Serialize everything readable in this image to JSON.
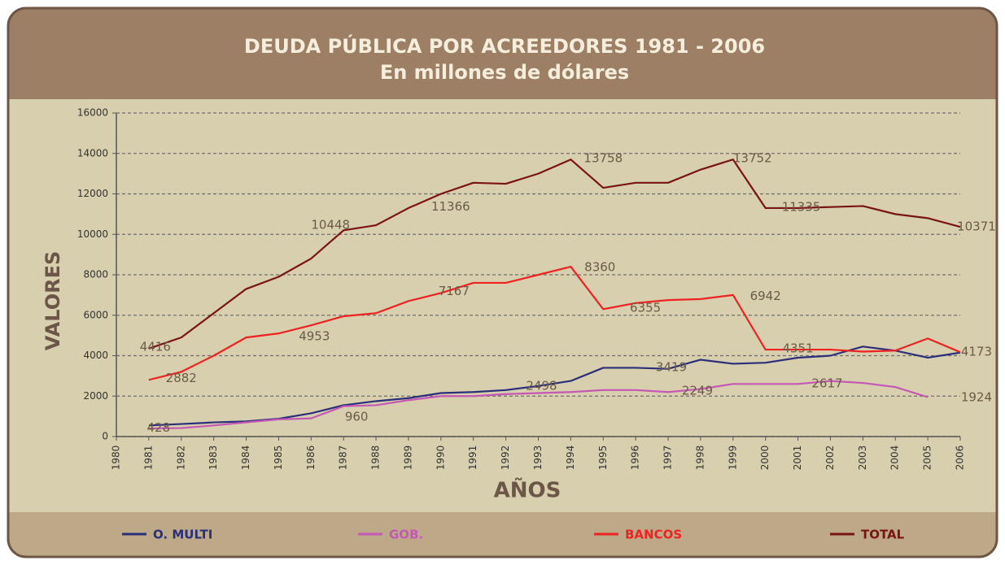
{
  "chart_data": {
    "type": "line",
    "title": "DEUDA PÚBLICA POR ACREEDORES 1981 - 2006",
    "subtitle": "En millones de dólares",
    "x_label": "AÑOS",
    "y_label": "VALORES",
    "x": [
      1981,
      1982,
      1983,
      1984,
      1985,
      1986,
      1987,
      1988,
      1989,
      1990,
      1991,
      1992,
      1993,
      1994,
      1995,
      1996,
      1997,
      1998,
      1999,
      2000,
      2001,
      2002,
      2003,
      2004,
      2005,
      2006
    ],
    "series": [
      {
        "name": "O. MULTI",
        "color": "#2b2f7a",
        "values": [
          550,
          620,
          700,
          750,
          880,
          1150,
          1550,
          1750,
          1900,
          2150,
          2200,
          2300,
          2500,
          2750,
          3400,
          3400,
          3350,
          3800,
          3600,
          3650,
          3900,
          4000,
          4450,
          4250,
          3900,
          4150
        ]
      },
      {
        "name": "GOB.",
        "color": "#c458b4",
        "values": [
          400,
          420,
          550,
          700,
          850,
          900,
          1500,
          1550,
          1800,
          2000,
          2000,
          2100,
          2150,
          2200,
          2300,
          2300,
          2200,
          2350,
          2600,
          2600,
          2600,
          2750,
          2650,
          2450,
          1950,
          null
        ]
      },
      {
        "name": "BANCOS",
        "color": "#ee2222",
        "values": [
          2800,
          3200,
          4000,
          4900,
          5100,
          5500,
          5950,
          6100,
          6700,
          7100,
          7600,
          7600,
          8000,
          8400,
          6300,
          6600,
          6750,
          6800,
          7000,
          4300,
          4300,
          4300,
          4200,
          4250,
          4850,
          4173
        ]
      },
      {
        "name": "TOTAL",
        "color": "#7a1414",
        "values": [
          4350,
          4900,
          6100,
          7300,
          7900,
          8800,
          10200,
          10450,
          11300,
          12000,
          12550,
          12500,
          13000,
          13700,
          12300,
          12550,
          12550,
          13200,
          13700,
          11300,
          11300,
          11350,
          11400,
          11000,
          10800,
          10371
        ]
      }
    ],
    "annotations": [
      {
        "x": 1981.3,
        "value": 428
      },
      {
        "x": 1982,
        "value": 2882
      },
      {
        "x": 1981.2,
        "value": 4416
      },
      {
        "x": 1987.4,
        "value": 960
      },
      {
        "x": 1986.1,
        "value": 4953
      },
      {
        "x": 1986.6,
        "value": 10448
      },
      {
        "x": 1990.3,
        "value": 11366
      },
      {
        "x": 1990.4,
        "value": 7167
      },
      {
        "x": 1993.1,
        "value": 2498
      },
      {
        "x": 1994.9,
        "value": 8360
      },
      {
        "x": 1995,
        "value": 13758
      },
      {
        "x": 1996.3,
        "value": 6355
      },
      {
        "x": 1997.1,
        "value": 3419
      },
      {
        "x": 1997.9,
        "value": 2249
      },
      {
        "x": 1999.6,
        "value": 13752
      },
      {
        "x": 2000,
        "value": 6942
      },
      {
        "x": 2001.1,
        "value": 11335
      },
      {
        "x": 2001,
        "value": 4351
      },
      {
        "x": 2001.9,
        "value": 2617
      },
      {
        "x": 2006.5,
        "value": 10371
      },
      {
        "x": 2006.5,
        "value": 4173
      },
      {
        "x": 2006.5,
        "value": 1924
      }
    ],
    "xlim": [
      1980,
      2006
    ],
    "xticks": [
      1980,
      1981,
      1982,
      1983,
      1984,
      1985,
      1986,
      1987,
      1988,
      1989,
      1990,
      1991,
      1992,
      1993,
      1994,
      1995,
      1996,
      1997,
      1998,
      1999,
      2000,
      2001,
      2002,
      2003,
      2004,
      2005,
      2006
    ],
    "ylim": [
      0,
      16000
    ],
    "yticks": [
      0,
      2000,
      4000,
      6000,
      8000,
      10000,
      12000,
      14000,
      16000
    ],
    "grid": true
  }
}
